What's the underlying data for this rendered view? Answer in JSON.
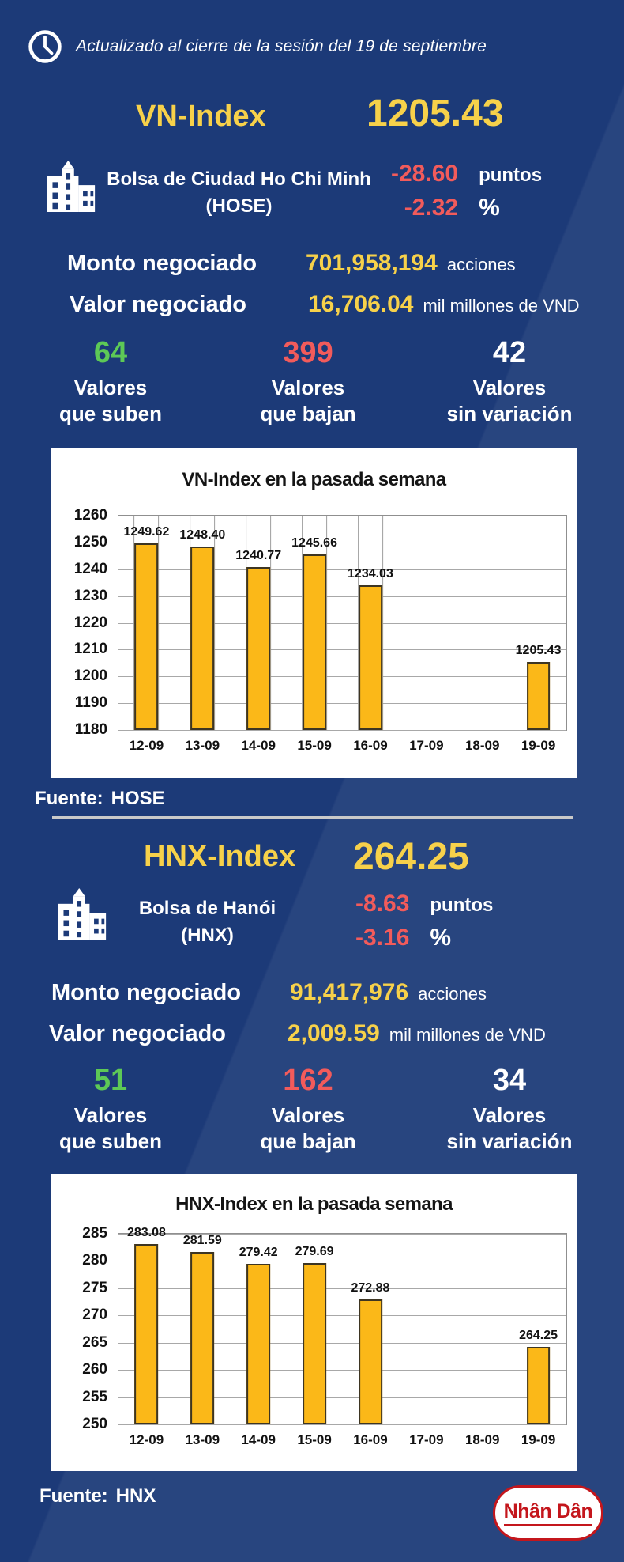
{
  "colors": {
    "background": "#1c3a78",
    "yellow": "#f7d14a",
    "red": "#f25b5b",
    "green": "#5dc956",
    "bar_fill": "#fbb818",
    "divider": "#c9c9c9",
    "logo_red": "#c4161c"
  },
  "header": {
    "updated_text": "Actualizado al cierre de la sesión del 19 de septiembre"
  },
  "vn": {
    "index_name": "VN-Index",
    "index_value": "1205.43",
    "exchange_name": "Bolsa de Ciudad Ho Chi Minh",
    "exchange_abbr": "(HOSE)",
    "change_points": "-28.60",
    "points_label": "puntos",
    "change_pct": "-2.32",
    "pct_label": "%",
    "volume_label": "Monto negociado",
    "volume_value": "701,958,194",
    "volume_unit": "acciones",
    "value_label": "Valor negociado",
    "value_value": "16,706.04",
    "value_unit": "mil millones de VND",
    "advancers": {
      "value": "64",
      "line1": "Valores",
      "line2": "que suben"
    },
    "decliners": {
      "value": "399",
      "line1": "Valores",
      "line2": "que bajan"
    },
    "unchanged": {
      "value": "42",
      "line1": "Valores",
      "line2": "sin variación"
    },
    "source_label": "Fuente:",
    "source_value": "HOSE"
  },
  "hnx": {
    "index_name": "HNX-Index",
    "index_value": "264.25",
    "exchange_name": "Bolsa de Hanói",
    "exchange_abbr": "(HNX)",
    "change_points": "-8.63",
    "points_label": "puntos",
    "change_pct": "-3.16",
    "pct_label": "%",
    "volume_label": "Monto negociado",
    "volume_value": "91,417,976",
    "volume_unit": "acciones",
    "value_label": "Valor negociado",
    "value_value": "2,009.59",
    "value_unit": "mil millones de VND",
    "advancers": {
      "value": "51",
      "line1": "Valores",
      "line2": "que suben"
    },
    "decliners": {
      "value": "162",
      "line1": "Valores",
      "line2": "que bajan"
    },
    "unchanged": {
      "value": "34",
      "line1": "Valores",
      "line2": "sin variación"
    },
    "source_label": "Fuente:",
    "source_value": "HNX"
  },
  "chart_data": [
    {
      "type": "bar",
      "title": "VN-Index en la pasada semana",
      "categories": [
        "12-09",
        "13-09",
        "14-09",
        "15-09",
        "16-09",
        "17-09",
        "18-09",
        "19-09"
      ],
      "values": [
        1249.62,
        1248.4,
        1240.77,
        1245.66,
        1234.03,
        null,
        null,
        1205.43
      ],
      "labels": [
        "1249.62",
        "1248.40",
        "1240.77",
        "1245.66",
        "1234.03",
        "",
        "",
        "1205.43"
      ],
      "ylim": [
        1180,
        1260
      ],
      "ytick_step": 10,
      "grid": "horizontal",
      "ghost_columns": [
        0,
        1,
        2,
        3,
        4
      ],
      "bar_color": "#fbb818",
      "legend": "none"
    },
    {
      "type": "bar",
      "title": "HNX-Index en la pasada semana",
      "categories": [
        "12-09",
        "13-09",
        "14-09",
        "15-09",
        "16-09",
        "17-09",
        "18-09",
        "19-09"
      ],
      "values": [
        283.08,
        281.59,
        279.42,
        279.69,
        272.88,
        null,
        null,
        264.25
      ],
      "labels": [
        "283.08",
        "281.59",
        "279.42",
        "279.69",
        "272.88",
        "",
        "",
        "264.25"
      ],
      "ylim": [
        250,
        285
      ],
      "ytick_step": 5,
      "grid": "horizontal",
      "ghost_columns": [],
      "bar_color": "#fbb818",
      "legend": "none"
    }
  ],
  "footer": {
    "logo_text": "Nhân Dân"
  }
}
